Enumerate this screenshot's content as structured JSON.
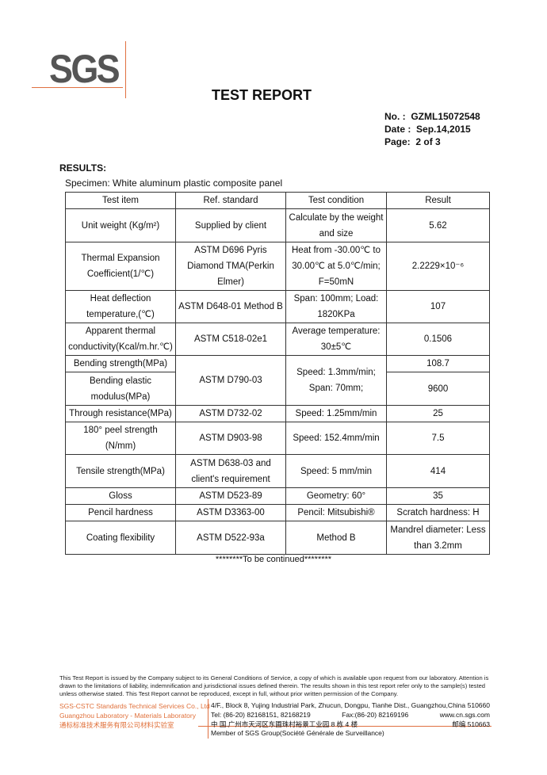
{
  "header": {
    "logo": "SGS",
    "title": "TEST  REPORT",
    "no_label": "No.  :",
    "no": "GZML15072548",
    "date_label": "Date :",
    "date": "Sep.14,2015",
    "page_label": "Page:",
    "page": "2 of  3"
  },
  "results_label": "RESULTS:",
  "specimen": "Specimen: White aluminum plastic composite panel",
  "table": {
    "headers": [
      "Test item",
      "Ref. standard",
      "Test condition",
      "Result"
    ],
    "rows": [
      {
        "item": "Unit weight (Kg/m²)",
        "ref": "Supplied by client",
        "cond": "Calculate by the weight and size",
        "result": "5.62"
      },
      {
        "item": "Thermal Expansion Coefficient(1/℃)",
        "ref": "ASTM D696 Pyris Diamond TMA(Perkin Elmer)",
        "cond": "Heat from -30.00℃ to 30.00℃ at 5.0℃/min; F=50mN",
        "result": "2.2229×10⁻⁶"
      },
      {
        "item": "Heat deflection temperature,(℃)",
        "ref": "ASTM D648-01 Method B",
        "cond": "Span: 100mm; Load: 1820KPa",
        "result": "107"
      },
      {
        "item": "Apparent thermal conductivity(Kcal/m.hr.℃)",
        "ref": "ASTM C518-02e1",
        "cond": "Average temperature: 30±5℃",
        "result": "0.1506"
      },
      {
        "item": "Bending strength(MPa)",
        "ref": "ASTM D790-03",
        "cond": "Speed: 1.3mm/min; Span: 70mm;",
        "result": "108.7"
      },
      {
        "item": "Bending elastic modulus(MPa)",
        "result": "9600"
      },
      {
        "item": "Through resistance(MPa)",
        "ref": "ASTM D732-02",
        "cond": "Speed: 1.25mm/min",
        "result": "25"
      },
      {
        "item": "180° peel strength (N/mm)",
        "ref": "ASTM D903-98",
        "cond": "Speed: 152.4mm/min",
        "result": "7.5"
      },
      {
        "item": "Tensile strength(MPa)",
        "ref": "ASTM D638-03 and client's requirement",
        "cond": "Speed: 5 mm/min",
        "result": "414"
      },
      {
        "item": "Gloss",
        "ref": "ASTM D523-89",
        "cond": "Geometry: 60°",
        "result": "35"
      },
      {
        "item": "Pencil hardness",
        "ref": "ASTM D3363-00",
        "cond": "Pencil: Mitsubishi®",
        "result": "Scratch hardness: H"
      },
      {
        "item": "Coating flexibility",
        "ref": "ASTM D522-93a",
        "cond": "Method B",
        "result": "Mandrel diameter: Less than 3.2mm"
      }
    ]
  },
  "continued": "********To be continued********",
  "footer": {
    "disclaimer": "This Test Report is issued by the Company subject to its General Conditions of Service, a copy of which is available upon request from our laboratory. Attention is drawn to the limitations of liability, indemnification and jurisdictional issues defined therein. The results shown in this test report refer only to the sample(s) tested unless otherwise stated. This Test Report cannot be reproduced, except in full, without prior written permission of the Company.",
    "company": [
      "SGS-CSTC Standards Technical Services Co., Ltd",
      "Guangzhou Laboratory - Materials Laboratory",
      "通标标准技术服务有限公司材料实验室"
    ],
    "address": "4/F., Block 8, Yujing Industrial Park, Zhucun, Dongpu, Tianhe Dist., Guangzhou,China",
    "postcode": "510660",
    "tel": "Tel: (86-20) 82168151,  82168219",
    "fax": "Fax:(86-20) 82169196",
    "web": "www.cn.sgs.com",
    "address_cn": "中 国.广州市天河区东圃珠村裕景工业园 8 栋 4 楼",
    "postcode_cn": "邮编 510663",
    "member": "Member of SGS Group(Société Générale de Surveillance)"
  },
  "colors": {
    "accent": "#e0703a",
    "logo": "#555555"
  }
}
